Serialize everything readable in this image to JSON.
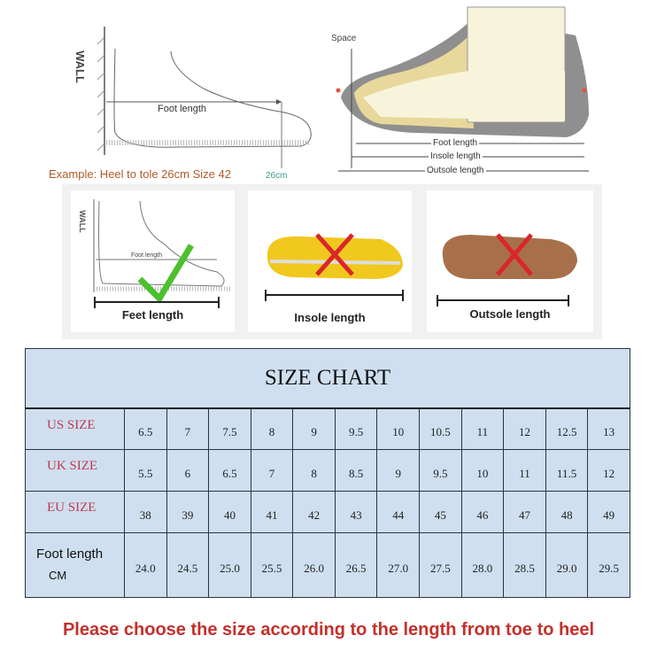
{
  "measure_diagram": {
    "wall": "WALL",
    "foot_length": "Foot length",
    "example": "Example: Heel to tole 26cm Size 42",
    "ruler_mark": "26cm"
  },
  "shoe_diagram": {
    "space": "Space",
    "foot_length": "Foot length",
    "insole_length": "Insole length",
    "outsole_length": "Outsole length"
  },
  "panels": [
    {
      "label": "Feet length",
      "mark": "check",
      "wall": "WALL",
      "foot_length": "Foot length"
    },
    {
      "label": "Insole length",
      "mark": "cross"
    },
    {
      "label": "Outsole length",
      "mark": "cross"
    }
  ],
  "colors": {
    "check": "#4cc02e",
    "cross": "#d9262b",
    "table_bg": "#cfdff0",
    "row_header": "#c0394b",
    "notice": "#c4302b"
  },
  "size_chart": {
    "title": "SIZE CHART",
    "rows": [
      {
        "label": "US SIZE",
        "values": [
          "6.5",
          "7",
          "7.5",
          "8",
          "9",
          "9.5",
          "10",
          "10.5",
          "11",
          "12",
          "12.5",
          "13"
        ]
      },
      {
        "label": "UK SIZE",
        "values": [
          "5.5",
          "6",
          "6.5",
          "7",
          "8",
          "8.5",
          "9",
          "9.5",
          "10",
          "11",
          "11.5",
          "12"
        ]
      },
      {
        "label": "EU SIZE",
        "values": [
          "38",
          "39",
          "40",
          "41",
          "42",
          "43",
          "44",
          "45",
          "46",
          "47",
          "48",
          "49"
        ]
      },
      {
        "label": "Foot length",
        "sublabel": "CM",
        "values": [
          "24.0",
          "24.5",
          "25.0",
          "25.5",
          "26.0",
          "26.5",
          "27.0",
          "27.5",
          "28.0",
          "28.5",
          "29.0",
          "29.5"
        ]
      }
    ]
  },
  "notice": "Please choose the size according to the length from toe to heel"
}
